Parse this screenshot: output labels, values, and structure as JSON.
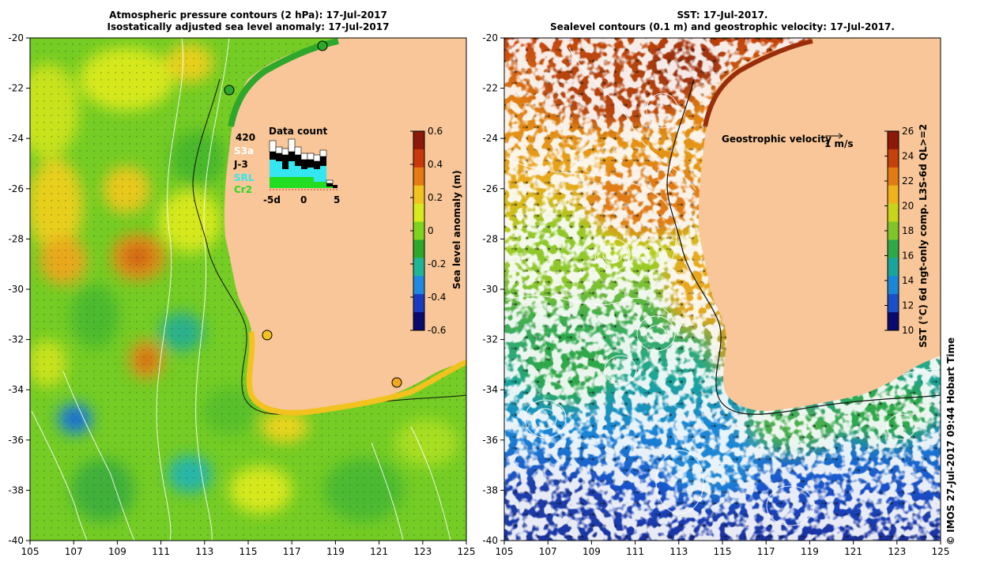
{
  "left_panel": {
    "title_line1": "Atmospheric pressure contours (2 hPa): 17-Jul-2017",
    "title_line2": "Isostatically adjusted sea level anomaly: 17-Jul-2017",
    "colorbar": {
      "label": "Sea level anomaly (m)",
      "ticks": [
        "0.6",
        "0.4",
        "0.2",
        "0",
        "-0.2",
        "-0.4",
        "-0.6"
      ],
      "colors": [
        "#8b1a0a",
        "#c8380a",
        "#e87a14",
        "#f2c21e",
        "#d6ea1c",
        "#7ed320",
        "#2ea82a",
        "#1fb596",
        "#1f8ae0",
        "#1a3ac0",
        "#0a0a6e"
      ]
    },
    "data_count": {
      "title": "Data count",
      "max_label": "420",
      "missions": [
        {
          "name": "S3a",
          "color": "#ffffff"
        },
        {
          "name": "J-3",
          "color": "#000000"
        },
        {
          "name": "SRL",
          "color": "#33e6f0"
        },
        {
          "name": "Cr2",
          "color": "#22dd22"
        }
      ],
      "x_ticks": [
        "-5d",
        "0",
        "5"
      ]
    },
    "y_labels": [
      "-20",
      "-22",
      "-24",
      "-26",
      "-28",
      "-30",
      "-32",
      "-34",
      "-36",
      "-38",
      "-40"
    ],
    "x_labels": [
      "105",
      "107",
      "109",
      "111",
      "113",
      "115",
      "117",
      "119",
      "121",
      "123",
      "125"
    ]
  },
  "right_panel": {
    "title_line1": "SST: 17-Jul-2017.",
    "title_line2": "Sealevel contours (0.1 m) and geostrophic velocity: 17-Jul-2017.",
    "velocity_legend": {
      "label": "Geostrophic velocity",
      "scale": "1 m/s"
    },
    "colorbar": {
      "label": "SST (°C) 6d ngt-only comp. L3S-6d QL>=2",
      "ticks": [
        "26",
        "24",
        "22",
        "20",
        "18",
        "16",
        "14",
        "12",
        "10"
      ],
      "colors": [
        "#8b1a0a",
        "#c2410c",
        "#e07b14",
        "#efb21c",
        "#c8d41c",
        "#7fc52a",
        "#2fa84a",
        "#1aa59a",
        "#1a86d6",
        "#1a4fc8",
        "#0a0a6e"
      ]
    },
    "y_labels": [
      "-20",
      "-22",
      "-24",
      "-26",
      "-28",
      "-30",
      "-32",
      "-34",
      "-36",
      "-38",
      "-40"
    ],
    "x_labels": [
      "105",
      "107",
      "109",
      "111",
      "113",
      "115",
      "117",
      "119",
      "121",
      "123",
      "125"
    ]
  },
  "credit": "© IMOS 27-Jul-2017 09:44 Hobart Time"
}
